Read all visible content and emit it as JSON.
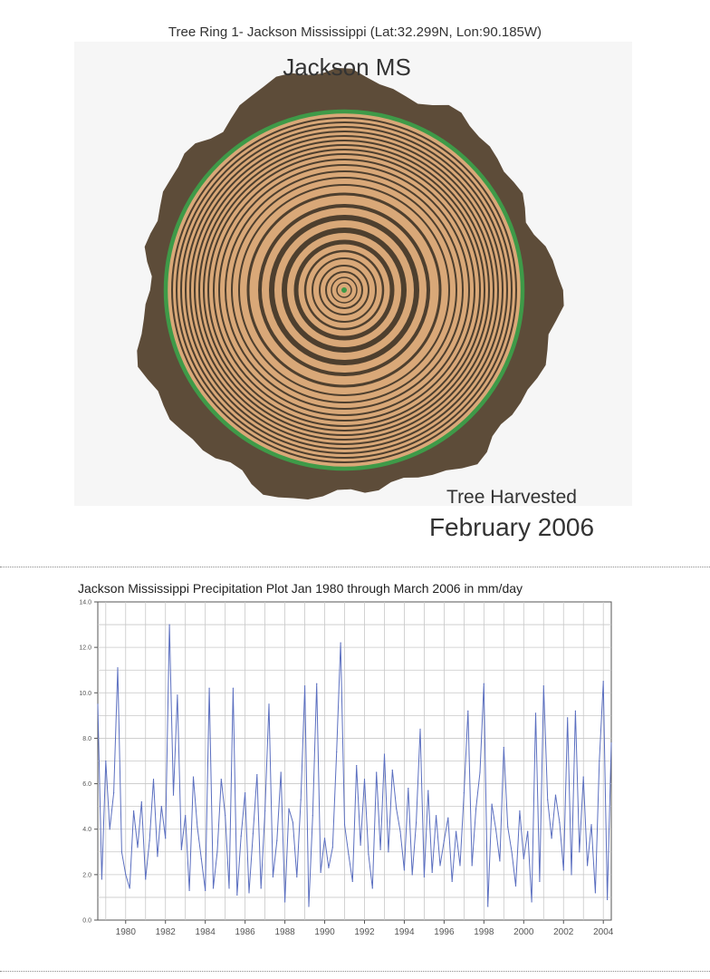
{
  "ring_panel": {
    "caption": "Tree Ring 1- Jackson Mississippi (Lat:32.299N, Lon:90.185W)",
    "location_label": "Jackson MS",
    "harvest_label": "Tree Harvested",
    "harvest_date": "February 2006",
    "colors": {
      "bark": "#5d4c39",
      "wood": "#d9a878",
      "ring_line": "#4e3f2e",
      "cambium": "#3e9a48"
    }
  },
  "chart_data": {
    "type": "line",
    "title": "Jackson Mississippi Precipitation Plot Jan 1980 through March 2006 in mm/day",
    "xlabel": "",
    "ylabel": "",
    "xlim": [
      1978.6,
      2004.4
    ],
    "ylim": [
      0,
      14
    ],
    "x_ticks": [
      "1980",
      "1982",
      "1984",
      "1986",
      "1988",
      "1990",
      "1992",
      "1994",
      "1996",
      "1998",
      "2000",
      "2002",
      "2004"
    ],
    "y_ticks": [
      "0.0",
      "2.0",
      "4.0",
      "6.0",
      "8.0",
      "10.0",
      "12.0",
      "14.0"
    ],
    "grid": true,
    "legend": "none",
    "series": [
      {
        "color": "#5b6fc0",
        "x": [
          1978.6,
          1978.8,
          1979.0,
          1979.2,
          1979.4,
          1979.6,
          1979.8,
          1980.0,
          1980.2,
          1980.4,
          1980.6,
          1980.8,
          1981.0,
          1981.2,
          1981.4,
          1981.6,
          1981.8,
          1982.0,
          1982.2,
          1982.4,
          1982.6,
          1982.8,
          1983.0,
          1983.2,
          1983.4,
          1983.6,
          1983.8,
          1984.0,
          1984.2,
          1984.4,
          1984.6,
          1984.8,
          1985.0,
          1985.2,
          1985.4,
          1985.6,
          1985.8,
          1986.0,
          1986.2,
          1986.4,
          1986.6,
          1986.8,
          1987.0,
          1987.2,
          1987.4,
          1987.6,
          1987.8,
          1988.0,
          1988.2,
          1988.4,
          1988.6,
          1988.8,
          1989.0,
          1989.2,
          1989.4,
          1989.6,
          1989.8,
          1990.0,
          1990.2,
          1990.4,
          1990.6,
          1990.8,
          1991.0,
          1991.2,
          1991.4,
          1991.6,
          1991.8,
          1992.0,
          1992.2,
          1992.4,
          1992.6,
          1992.8,
          1993.0,
          1993.2,
          1993.4,
          1993.6,
          1993.8,
          1994.0,
          1994.2,
          1994.4,
          1994.6,
          1994.8,
          1995.0,
          1995.2,
          1995.4,
          1995.6,
          1995.8,
          1996.0,
          1996.2,
          1996.4,
          1996.6,
          1996.8,
          1997.0,
          1997.2,
          1997.4,
          1997.6,
          1997.8,
          1998.0,
          1998.2,
          1998.4,
          1998.6,
          1998.8,
          1999.0,
          1999.2,
          1999.4,
          1999.6,
          1999.8,
          2000.0,
          2000.2,
          2000.4,
          2000.6,
          2000.8,
          2001.0,
          2001.2,
          2001.4,
          2001.6,
          2001.8,
          2002.0,
          2002.2,
          2002.4,
          2002.6,
          2002.8,
          2003.0,
          2003.2,
          2003.4,
          2003.6,
          2003.8,
          2004.0,
          2004.2,
          2004.4
        ],
        "values": [
          9.5,
          1.8,
          7.0,
          4.0,
          5.6,
          11.1,
          3.0,
          2.0,
          1.4,
          4.8,
          3.2,
          5.2,
          1.8,
          3.5,
          6.2,
          2.8,
          5.0,
          3.6,
          13.0,
          5.5,
          9.9,
          3.1,
          4.6,
          1.3,
          6.3,
          4.1,
          2.7,
          1.3,
          10.2,
          1.4,
          3.0,
          6.2,
          4.6,
          1.4,
          10.2,
          1.1,
          3.7,
          5.6,
          1.2,
          3.8,
          6.4,
          1.4,
          4.8,
          9.5,
          1.9,
          3.5,
          6.5,
          0.8,
          4.9,
          4.3,
          1.9,
          5.3,
          10.3,
          0.6,
          4.6,
          10.4,
          2.1,
          3.6,
          2.3,
          3.2,
          7.4,
          12.2,
          4.2,
          2.9,
          1.7,
          6.8,
          3.3,
          6.2,
          2.9,
          1.4,
          6.5,
          3.1,
          7.3,
          3.0,
          6.6,
          4.9,
          3.9,
          2.2,
          5.8,
          2.0,
          4.3,
          8.4,
          1.9,
          5.7,
          2.1,
          4.6,
          2.4,
          3.5,
          4.5,
          1.7,
          3.9,
          2.4,
          5.6,
          9.2,
          2.4,
          4.9,
          6.5,
          10.4,
          0.6,
          5.1,
          4.0,
          2.6,
          7.6,
          4.1,
          3.0,
          1.5,
          4.8,
          2.7,
          3.9,
          0.8,
          9.1,
          1.7,
          10.3,
          5.3,
          3.6,
          5.5,
          4.3,
          2.2,
          8.9,
          2.0,
          9.2,
          3.0,
          6.3,
          2.4,
          4.2,
          1.2,
          7.0,
          10.5,
          0.9,
          7.8
        ]
      }
    ]
  }
}
